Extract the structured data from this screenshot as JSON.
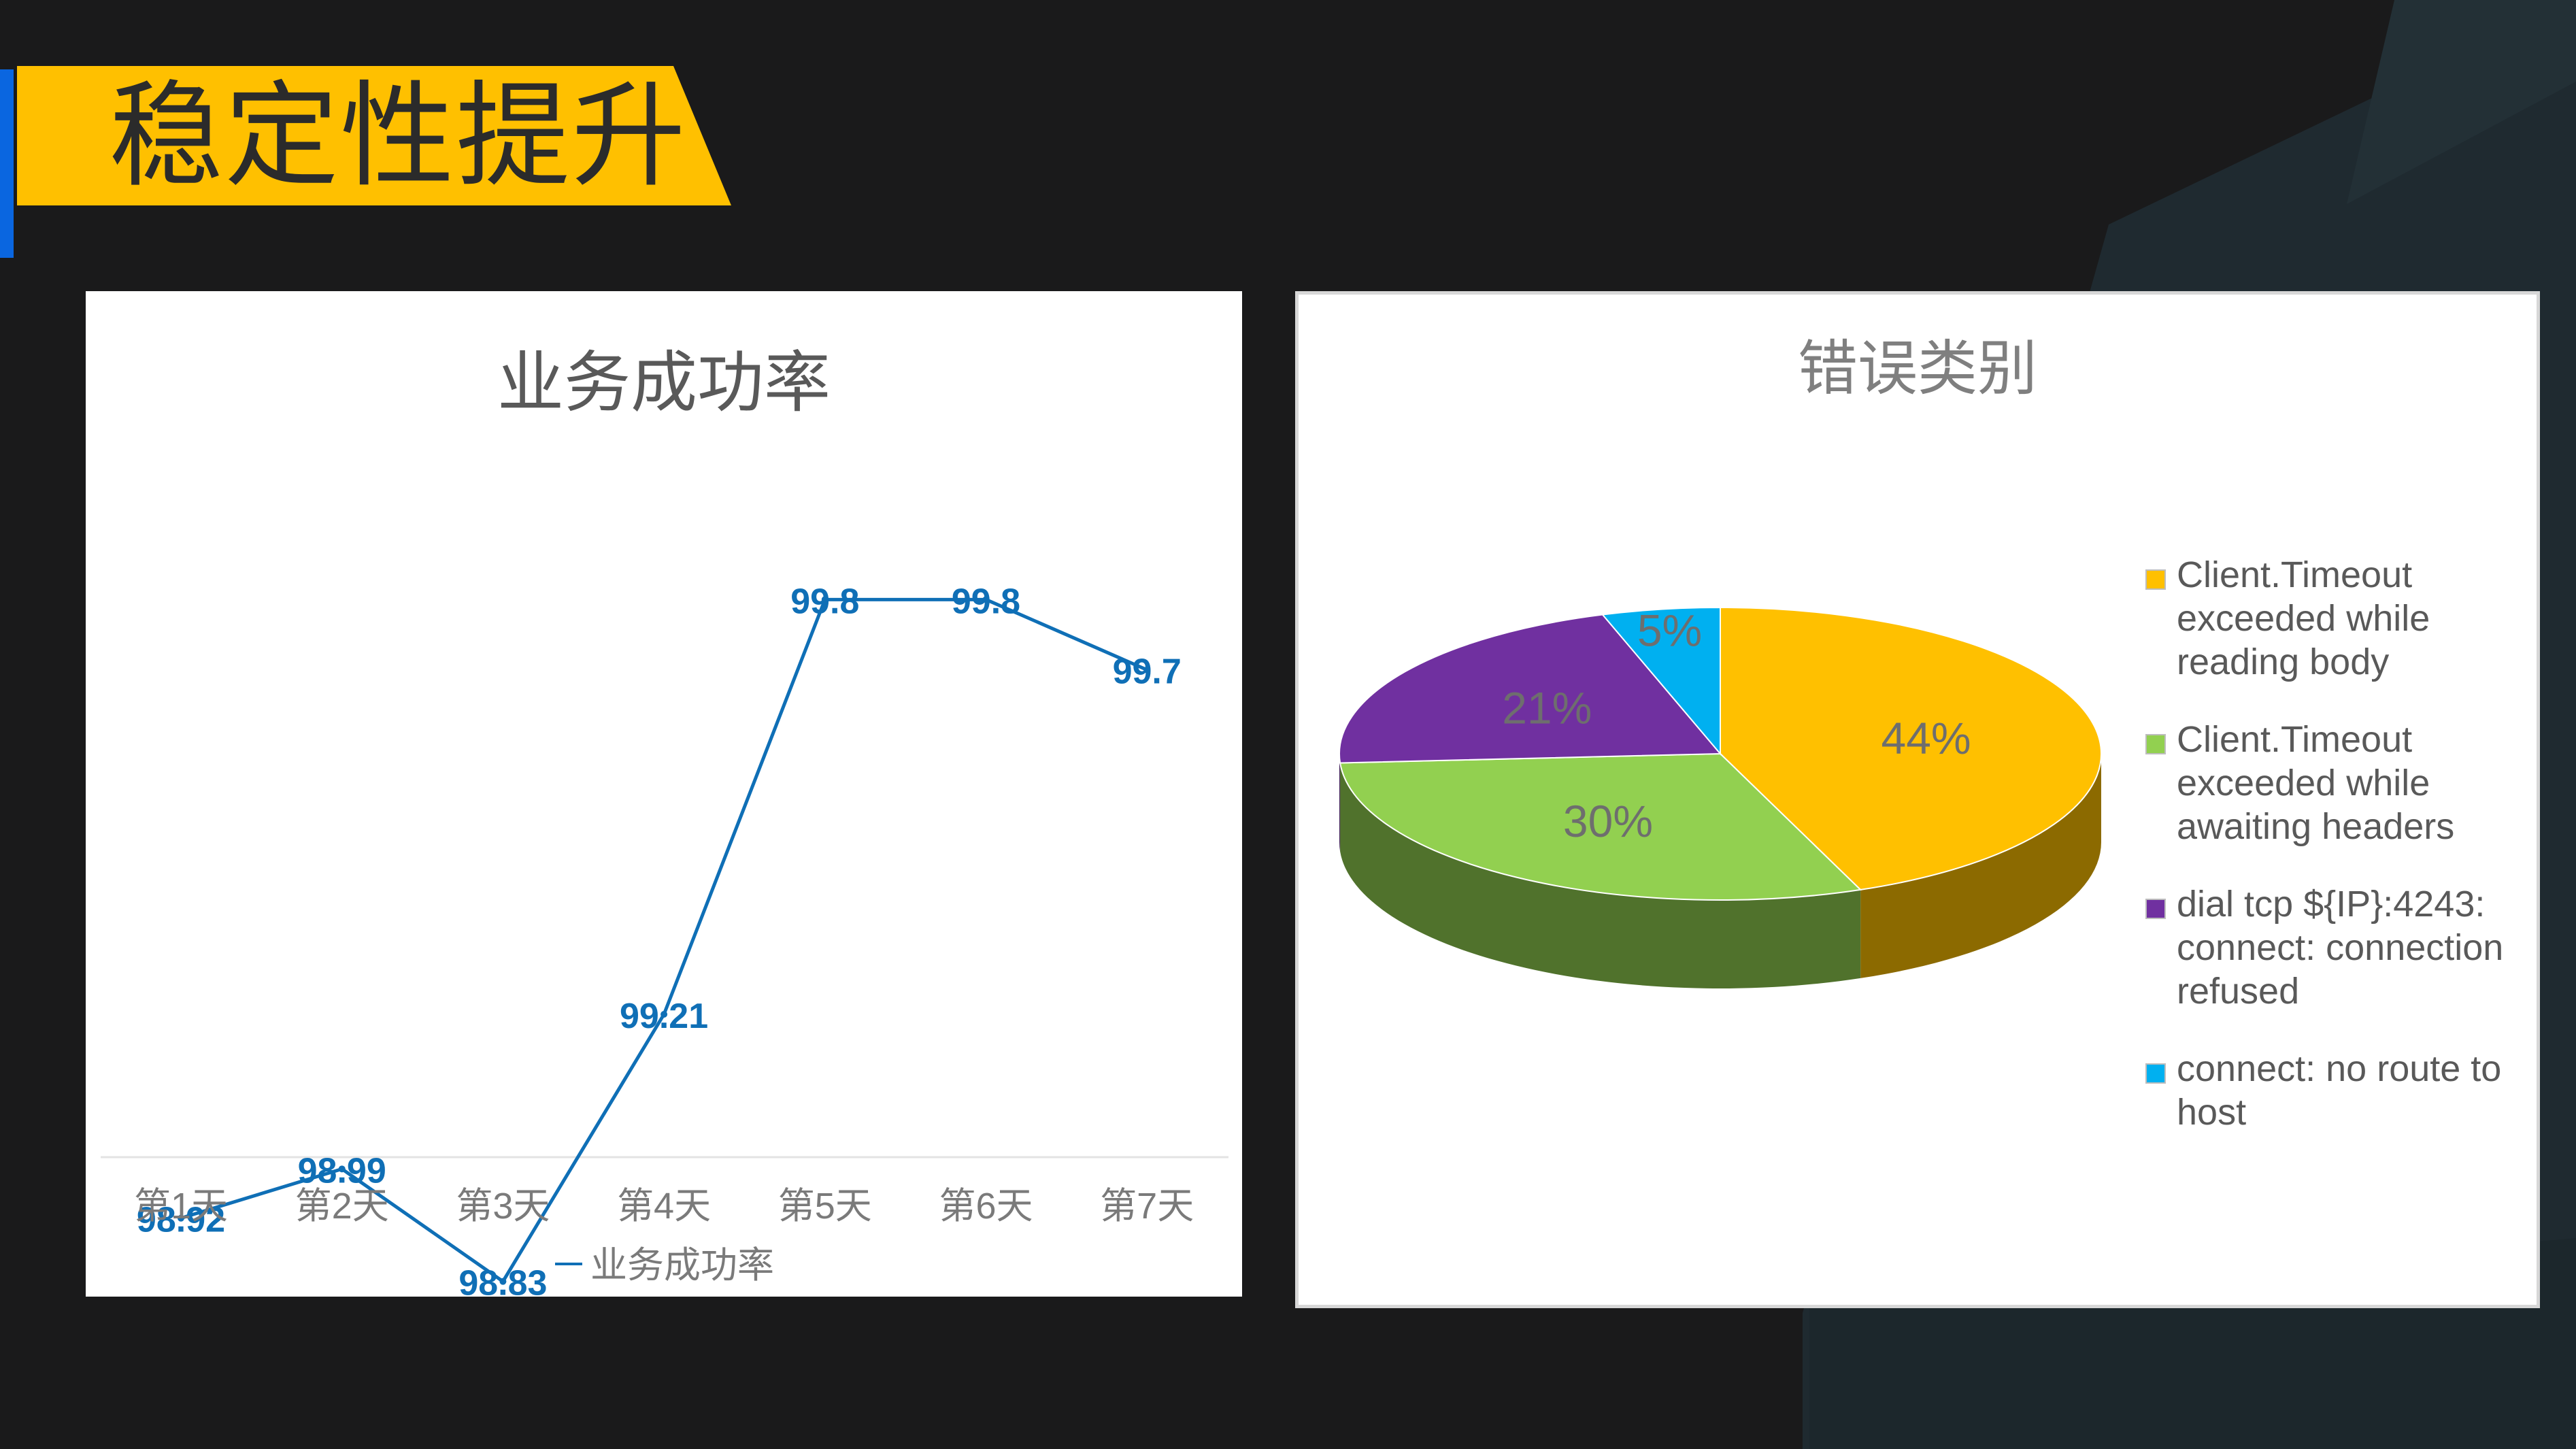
{
  "slide": {
    "title": "稳定性提升",
    "colors": {
      "background": "#1a1a1b",
      "title_banner": "#ffc000",
      "accent_bar": "#0a66e0"
    }
  },
  "line_chart": {
    "title": "业务成功率",
    "legend_label": "业务成功率"
  },
  "pie_chart": {
    "title": "错误类别"
  },
  "chart_data": [
    {
      "type": "line",
      "title": "业务成功率",
      "categories": [
        "第1天",
        "第2天",
        "第3天",
        "第4天",
        "第5天",
        "第6天",
        "第7天"
      ],
      "series": [
        {
          "name": "业务成功率",
          "values": [
            98.92,
            98.99,
            98.83,
            99.21,
            99.8,
            99.8,
            99.7
          ],
          "color": "#0f6fb6"
        }
      ],
      "data_labels": [
        "98.92",
        "98.99",
        "98.83",
        "99.21",
        "99.8",
        "99.8",
        "99.7"
      ],
      "ylim": [
        98.4,
        100.2
      ],
      "grid": false,
      "legend": "bottom"
    },
    {
      "type": "pie",
      "title": "错误类别",
      "labels": [
        "Client.Timeout exceeded while reading body",
        "Client.Timeout exceeded while awaiting headers",
        "dial tcp ${IP}:4243: connect: connection refused",
        "connect: no route to host"
      ],
      "values": [
        44,
        30,
        21,
        5
      ],
      "data_labels": [
        "44%",
        "30%",
        "21%",
        "5%"
      ],
      "colors": [
        "#ffc000",
        "#92d050",
        "#7030a0",
        "#00b0f0"
      ],
      "legend": "right"
    }
  ]
}
